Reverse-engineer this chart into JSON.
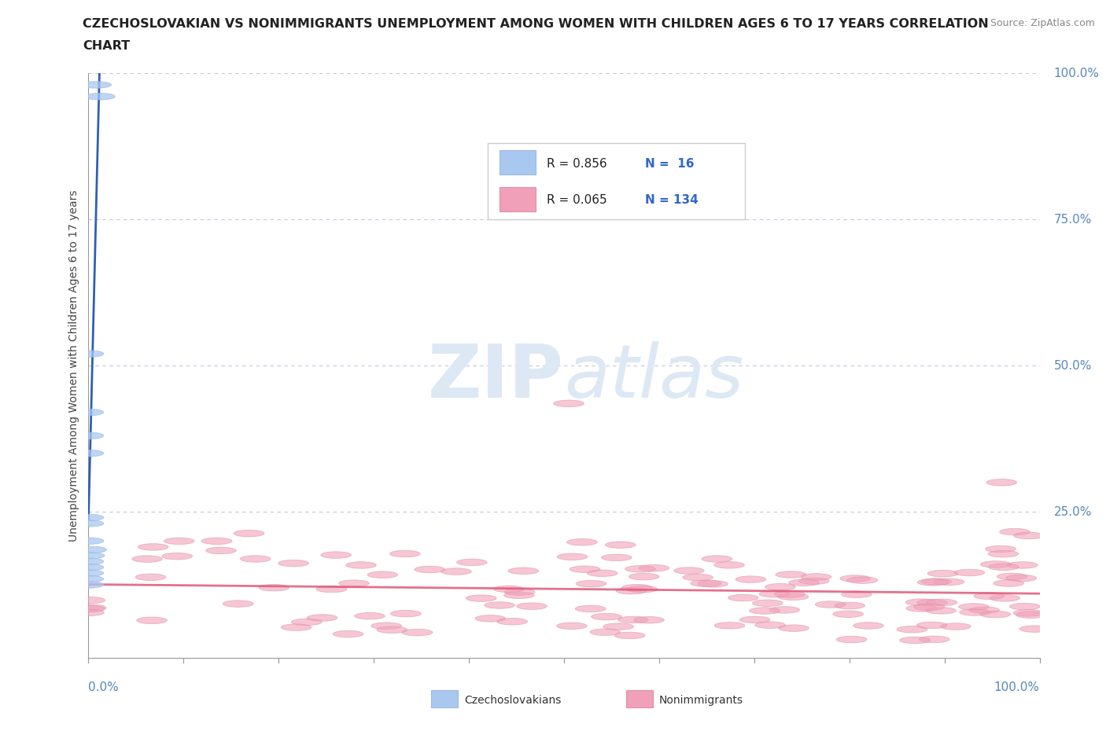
{
  "title_line1": "CZECHOSLOVAKIAN VS NONIMMIGRANTS UNEMPLOYMENT AMONG WOMEN WITH CHILDREN AGES 6 TO 17 YEARS CORRELATION",
  "title_line2": "CHART",
  "source_text": "Source: ZipAtlas.com",
  "ylabel": "Unemployment Among Women with Children Ages 6 to 17 years",
  "legend_blue_R": "R = 0.856",
  "legend_blue_N": "N =  16",
  "legend_pink_R": "R = 0.065",
  "legend_pink_N": "N = 134",
  "blue_fill": "#a8c8f0",
  "blue_edge": "#a0b8e0",
  "pink_fill": "#f0a0b8",
  "pink_edge": "#e090a8",
  "blue_line_color": "#3060b0",
  "pink_line_color": "#e0507080",
  "background_color": "#ffffff",
  "grid_color": "#c0c8e0",
  "watermark_color": "#dde8f5",
  "blue_x": [
    0.008,
    0.012,
    0.0,
    0.0,
    0.0,
    0.0,
    0.0,
    0.0,
    0.0,
    0.003,
    0.001,
    0.0,
    0.0,
    0.0,
    0.0,
    0.0
  ],
  "blue_y": [
    0.98,
    0.96,
    0.52,
    0.42,
    0.38,
    0.35,
    0.24,
    0.23,
    0.2,
    0.185,
    0.175,
    0.165,
    0.155,
    0.145,
    0.135,
    0.125
  ]
}
